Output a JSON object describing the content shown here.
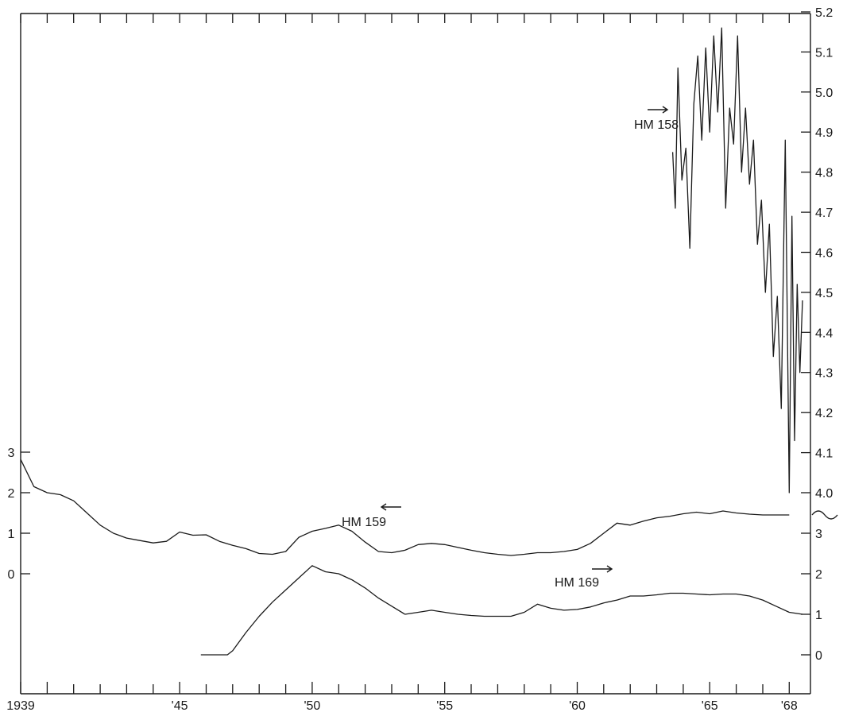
{
  "chart_data": {
    "type": "line",
    "grid": false,
    "x_axis": {
      "range": [
        1939,
        1968.8
      ],
      "tick_values": [
        1939,
        1945,
        1950,
        1955,
        1960,
        1965,
        1968
      ],
      "tick_labels": [
        "1939",
        "'45",
        "'50",
        "'55",
        "'60",
        "'65",
        "'68"
      ]
    },
    "y_axes": {
      "left": {
        "ticks": [
          "3",
          "2",
          "1",
          "0"
        ],
        "values": [
          3,
          2,
          1,
          0
        ]
      },
      "right_upper": {
        "ticks": [
          "5.2",
          "5.1",
          "5.0",
          "4.9",
          "4.8",
          "4.7",
          "4.6",
          "4.5",
          "4.4",
          "4.3",
          "4.2",
          "4.1",
          "4.0"
        ],
        "values": [
          5.2,
          5.1,
          5.0,
          4.9,
          4.8,
          4.7,
          4.6,
          4.5,
          4.4,
          4.3,
          4.2,
          4.1,
          4.0
        ]
      },
      "right_lower": {
        "ticks": [
          "3",
          "2",
          "1",
          "0"
        ],
        "values": [
          3,
          2,
          1,
          0
        ]
      }
    },
    "series": [
      {
        "name": "HM 158",
        "label": "HM 158",
        "arrow": "right",
        "axis": "right_upper",
        "x": [
          1963.6,
          1963.7,
          1963.8,
          1963.95,
          1964.1,
          1964.25,
          1964.4,
          1964.55,
          1964.7,
          1964.85,
          1965.0,
          1965.15,
          1965.3,
          1965.45,
          1965.6,
          1965.75,
          1965.9,
          1966.05,
          1966.2,
          1966.35,
          1966.5,
          1966.65,
          1966.8,
          1966.95,
          1967.1,
          1967.25,
          1967.4,
          1967.55,
          1967.7,
          1967.85,
          1968.0,
          1968.1,
          1968.2,
          1968.3,
          1968.4,
          1968.5
        ],
        "y": [
          4.85,
          4.71,
          5.06,
          4.78,
          4.86,
          4.61,
          4.97,
          5.09,
          4.88,
          5.11,
          4.9,
          5.14,
          4.95,
          5.16,
          4.71,
          4.96,
          4.87,
          5.14,
          4.8,
          4.96,
          4.77,
          4.88,
          4.62,
          4.73,
          4.5,
          4.67,
          4.34,
          4.49,
          4.21,
          4.88,
          4.0,
          4.69,
          4.13,
          4.52,
          4.3,
          4.48
        ]
      },
      {
        "name": "HM 159",
        "label": "HM 159",
        "arrow": "left",
        "axis": "left",
        "x": [
          1939.0,
          1939.5,
          1940.0,
          1940.5,
          1941.0,
          1941.5,
          1942.0,
          1942.5,
          1943.0,
          1943.5,
          1944.0,
          1944.5,
          1945.0,
          1945.5,
          1946.0,
          1946.5,
          1947.0,
          1947.5,
          1948.0,
          1948.5,
          1949.0,
          1949.5,
          1950.0,
          1950.5,
          1951.0,
          1951.5,
          1952.0,
          1952.5,
          1953.0,
          1953.5,
          1954.0,
          1954.5,
          1955.0,
          1955.5,
          1956.0,
          1956.5,
          1957.0,
          1957.5,
          1958.0,
          1958.5,
          1959.0,
          1959.5,
          1960.0,
          1960.5,
          1961.0,
          1961.5,
          1962.0,
          1962.5,
          1963.0,
          1963.5,
          1964.0,
          1964.5,
          1965.0,
          1965.5,
          1966.0,
          1966.5,
          1967.0,
          1967.5,
          1968.0
        ],
        "y": [
          2.82,
          2.15,
          2.0,
          1.95,
          1.8,
          1.5,
          1.2,
          1.0,
          0.88,
          0.82,
          0.76,
          0.8,
          1.03,
          0.95,
          0.96,
          0.8,
          0.7,
          0.62,
          0.5,
          0.48,
          0.55,
          0.9,
          1.05,
          1.12,
          1.2,
          1.05,
          0.78,
          0.55,
          0.52,
          0.58,
          0.72,
          0.75,
          0.72,
          0.65,
          0.58,
          0.52,
          0.48,
          0.45,
          0.48,
          0.52,
          0.52,
          0.55,
          0.6,
          0.75,
          1.0,
          1.25,
          1.2,
          1.3,
          1.38,
          1.42,
          1.48,
          1.52,
          1.48,
          1.55,
          1.5,
          1.47,
          1.45,
          1.45,
          1.45
        ]
      },
      {
        "name": "HM 169",
        "label": "HM 169",
        "arrow": "right",
        "axis": "right_lower",
        "x": [
          1945.8,
          1946.3,
          1946.8,
          1947.0,
          1947.5,
          1948.0,
          1948.5,
          1949.0,
          1949.5,
          1950.0,
          1950.5,
          1951.0,
          1951.5,
          1952.0,
          1952.5,
          1953.0,
          1953.5,
          1954.0,
          1954.5,
          1955.0,
          1955.5,
          1956.0,
          1956.5,
          1957.0,
          1957.5,
          1958.0,
          1958.5,
          1959.0,
          1959.5,
          1960.0,
          1960.5,
          1961.0,
          1961.5,
          1962.0,
          1962.5,
          1963.0,
          1963.5,
          1964.0,
          1964.5,
          1965.0,
          1965.5,
          1966.0,
          1966.5,
          1967.0,
          1967.5,
          1968.0,
          1968.5
        ],
        "y": [
          0.0,
          0.0,
          0.0,
          0.1,
          0.55,
          0.95,
          1.3,
          1.6,
          1.9,
          2.2,
          2.05,
          2.0,
          1.85,
          1.65,
          1.4,
          1.2,
          1.0,
          1.05,
          1.1,
          1.05,
          1.0,
          0.97,
          0.95,
          0.95,
          0.95,
          1.05,
          1.25,
          1.15,
          1.1,
          1.12,
          1.18,
          1.28,
          1.35,
          1.45,
          1.45,
          1.48,
          1.52,
          1.52,
          1.5,
          1.48,
          1.5,
          1.5,
          1.45,
          1.35,
          1.2,
          1.05,
          1.0
        ]
      }
    ]
  }
}
